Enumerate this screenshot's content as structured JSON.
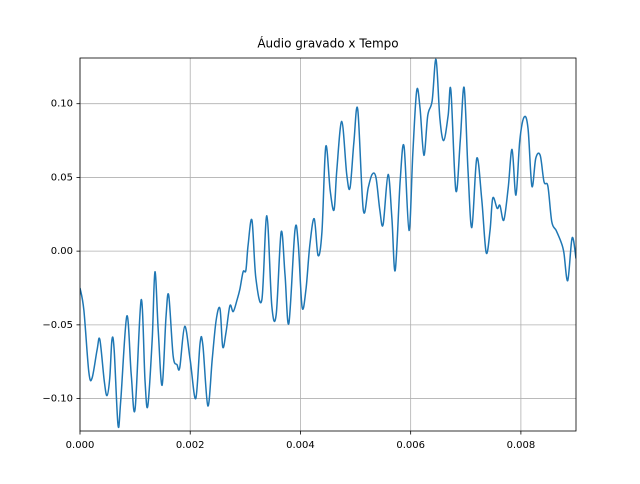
{
  "chart_data": {
    "type": "line",
    "title": "Áudio gravado x Tempo",
    "x": [
      0,
      7e-05,
      0.00016,
      0.00022,
      0.00031,
      0.00036,
      0.00044,
      0.00049,
      0.00054,
      0.00058,
      0.00062,
      0.00069,
      0.00074,
      0.00085,
      0.00093,
      0.001,
      0.00111,
      0.00118,
      0.00123,
      0.00131,
      0.00136,
      0.00142,
      0.00149,
      0.00156,
      0.00161,
      0.00169,
      0.00176,
      0.00181,
      0.0019,
      0.002,
      0.0021,
      0.00218,
      0.00223,
      0.00232,
      0.0024,
      0.00247,
      0.00254,
      0.00259,
      0.00265,
      0.00272,
      0.00278,
      0.00285,
      0.0029,
      0.00296,
      0.00301,
      0.00305,
      0.00312,
      0.00319,
      0.0033,
      0.00339,
      0.00348,
      0.00356,
      0.00365,
      0.00372,
      0.00379,
      0.0039,
      0.00396,
      0.00403,
      0.0041,
      0.00417,
      0.00425,
      0.00432,
      0.00439,
      0.00446,
      0.00454,
      0.00461,
      0.00466,
      0.00475,
      0.00484,
      0.0049,
      0.00497,
      0.00504,
      0.00514,
      0.00523,
      0.0053,
      0.00537,
      0.00544,
      0.0055,
      0.00559,
      0.00566,
      0.00572,
      0.00581,
      0.00588,
      0.00597,
      0.00604,
      0.00611,
      0.00617,
      0.00624,
      0.00631,
      0.00639,
      0.00646,
      0.00653,
      0.0066,
      0.00668,
      0.00673,
      0.00682,
      0.0069,
      0.00697,
      0.00704,
      0.00711,
      0.0072,
      0.00729,
      0.00737,
      0.00744,
      0.00749,
      0.00757,
      0.00762,
      0.00769,
      0.00777,
      0.00784,
      0.00791,
      0.00798,
      0.00806,
      0.00813,
      0.0082,
      0.00827,
      0.00835,
      0.00842,
      0.00849,
      0.00856,
      0.00864,
      0.00873,
      0.00878,
      0.00885,
      0.00893,
      0.009
    ],
    "series": [
      {
        "color": "#1f77b4",
        "values": [
          -0.025,
          -0.04,
          -0.082,
          -0.086,
          -0.067,
          -0.06,
          -0.088,
          -0.098,
          -0.086,
          -0.06,
          -0.067,
          -0.118,
          -0.101,
          -0.044,
          -0.084,
          -0.107,
          -0.033,
          -0.088,
          -0.105,
          -0.06,
          -0.014,
          -0.054,
          -0.091,
          -0.045,
          -0.03,
          -0.071,
          -0.077,
          -0.079,
          -0.051,
          -0.074,
          -0.1,
          -0.062,
          -0.064,
          -0.105,
          -0.073,
          -0.047,
          -0.039,
          -0.065,
          -0.055,
          -0.037,
          -0.041,
          -0.033,
          -0.026,
          -0.014,
          -0.013,
          0.004,
          0.021,
          -0.018,
          -0.033,
          0.024,
          -0.037,
          -0.043,
          0.013,
          -0.016,
          -0.049,
          0.014,
          0.005,
          -0.038,
          -0.026,
          0.004,
          0.022,
          -0.003,
          0.013,
          0.071,
          0.041,
          0.028,
          0.055,
          0.088,
          0.052,
          0.043,
          0.074,
          0.096,
          0.028,
          0.043,
          0.052,
          0.05,
          0.028,
          0.018,
          0.052,
          0.022,
          -0.013,
          0.048,
          0.071,
          0.014,
          0.067,
          0.109,
          0.097,
          0.065,
          0.092,
          0.102,
          0.13,
          0.09,
          0.075,
          0.092,
          0.109,
          0.041,
          0.075,
          0.111,
          0.055,
          0.016,
          0.063,
          0.035,
          -0.001,
          0.014,
          0.036,
          0.029,
          0.031,
          0.021,
          0.043,
          0.069,
          0.038,
          0.075,
          0.091,
          0.083,
          0.044,
          0.063,
          0.065,
          0.047,
          0.044,
          0.02,
          0.014,
          0.006,
          -0.001,
          -0.02,
          0.009,
          -0.005
        ]
      }
    ],
    "xlim": [
      0,
      0.009
    ],
    "xticks": [
      {
        "value": 0,
        "label": "0.000"
      },
      {
        "value": 0.002,
        "label": "0.002"
      },
      {
        "value": 0.004,
        "label": "0.004"
      },
      {
        "value": 0.006,
        "label": "0.006"
      },
      {
        "value": 0.008,
        "label": "0.008"
      }
    ],
    "ylim": [
      -0.122,
      0.131
    ],
    "yticks": [
      {
        "value": -0.1,
        "label": "−0.10"
      },
      {
        "value": -0.05,
        "label": "−0.05"
      },
      {
        "value": 0,
        "label": "0.00"
      },
      {
        "value": 0.05,
        "label": "0.05"
      },
      {
        "value": 0.1,
        "label": "0.10"
      }
    ],
    "grid": true
  }
}
